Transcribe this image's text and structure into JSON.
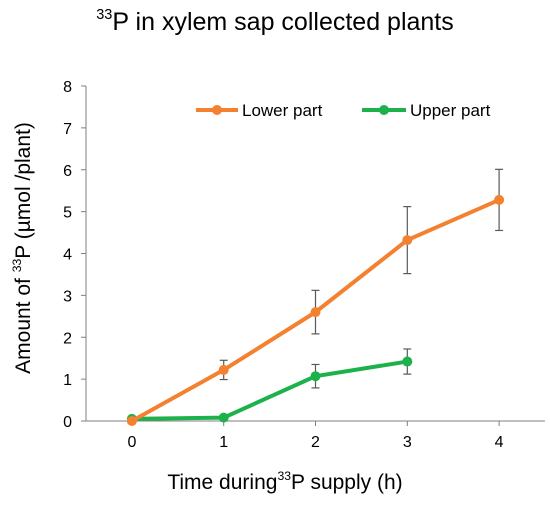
{
  "chart_data": {
    "type": "line",
    "title": {
      "sup": "33",
      "text": "P in xylem sap collected plants"
    },
    "xlabel": {
      "before": "Time during",
      "sup": "33",
      "after": "P supply (h)"
    },
    "ylabel": {
      "before": "Amount of ",
      "sup": "33",
      "after": "P (µmol /plant)"
    },
    "x": [
      0,
      1,
      2,
      3,
      4
    ],
    "x_ticks": [
      "0",
      "1",
      "2",
      "3",
      "4"
    ],
    "y_ticks": [
      "0",
      "1",
      "2",
      "3",
      "4",
      "5",
      "6",
      "7",
      "8"
    ],
    "xlim": [
      -0.5,
      4.5
    ],
    "ylim": [
      0,
      8
    ],
    "grid": false,
    "legend_position": "top-right",
    "series": [
      {
        "name": "Lower part",
        "color": "#F4812F",
        "x": [
          0,
          1,
          2,
          3,
          4
        ],
        "values": [
          0.0,
          1.22,
          2.6,
          4.32,
          5.28
        ],
        "error": [
          0.0,
          0.23,
          0.52,
          0.8,
          0.73
        ]
      },
      {
        "name": "Upper part",
        "color": "#1DB14B",
        "x": [
          0,
          1,
          2,
          3
        ],
        "values": [
          0.05,
          0.08,
          1.07,
          1.42
        ],
        "error": [
          0.0,
          0.0,
          0.28,
          0.3
        ]
      }
    ]
  }
}
